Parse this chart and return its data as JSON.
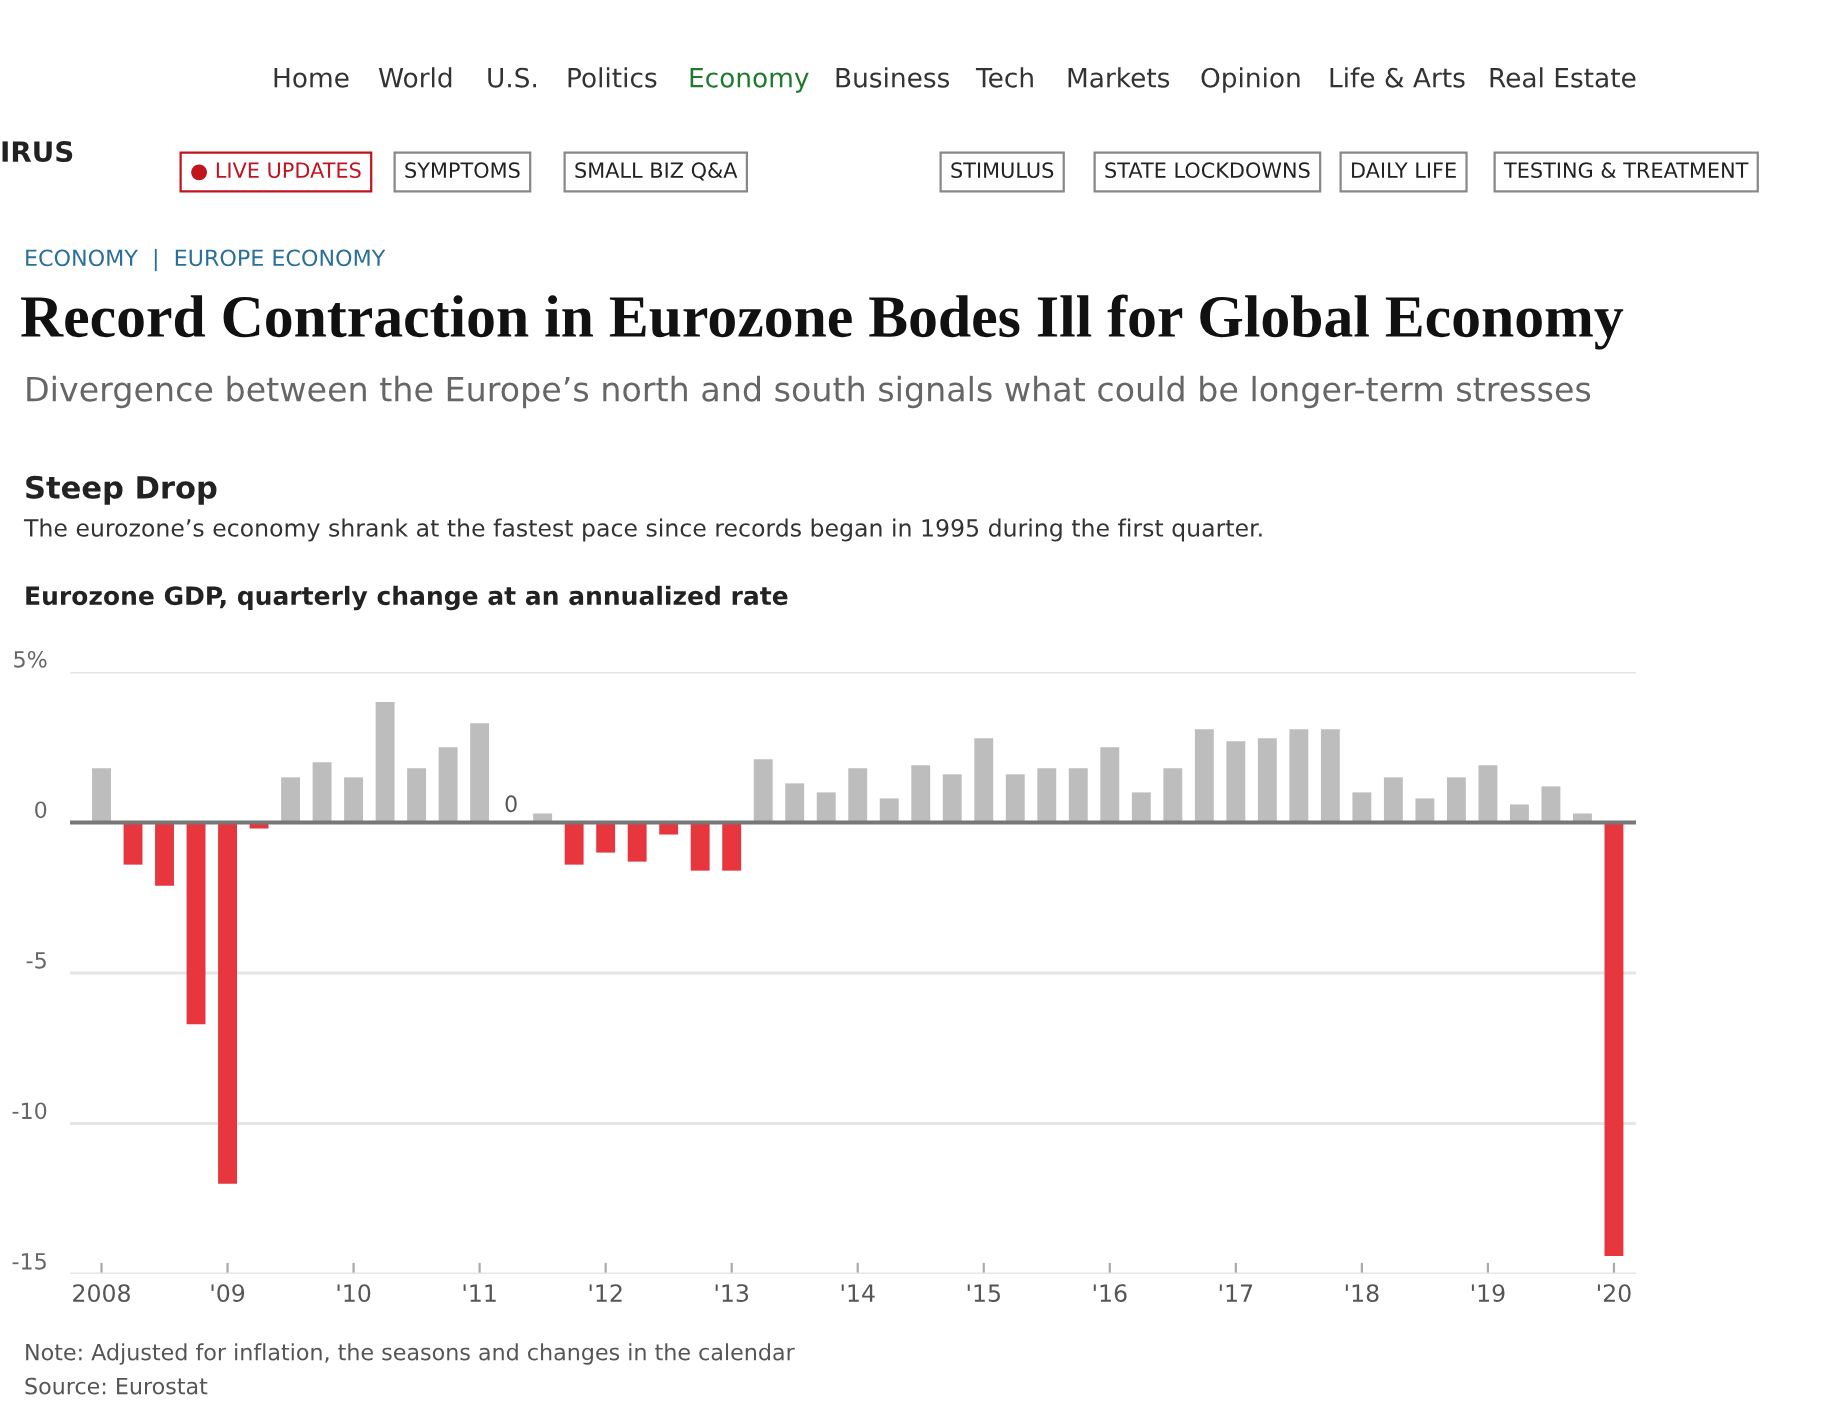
{
  "chart_data": {
    "type": "bar",
    "title": "Steep Drop",
    "subtitle": "The eurozone’s economy shrank at the fastest pace since records began in 1995 during the first quarter.",
    "ylabel": "Eurozone GDP, quarterly change at an annualized rate",
    "categories": [
      "2008",
      null,
      null,
      null,
      "'09",
      null,
      null,
      null,
      "'10",
      null,
      null,
      null,
      "'11",
      null,
      null,
      null,
      "'12",
      null,
      null,
      null,
      "'13",
      null,
      null,
      null,
      "'14",
      null,
      null,
      null,
      "'15",
      null,
      null,
      null,
      "'16",
      null,
      null,
      null,
      "'17",
      null,
      null,
      null,
      "'18",
      null,
      null,
      null,
      "'19",
      null,
      null,
      null,
      "'20"
    ],
    "values": [
      1.8,
      -1.4,
      -2.1,
      -6.7,
      -12.0,
      -0.2,
      1.5,
      2.0,
      1.5,
      4.0,
      1.8,
      2.5,
      3.3,
      0,
      0.3,
      -1.4,
      -1.0,
      -1.3,
      -0.4,
      -1.6,
      -1.6,
      2.1,
      1.3,
      1.0,
      1.8,
      0.8,
      1.9,
      1.6,
      2.8,
      1.6,
      1.8,
      1.8,
      2.5,
      1.0,
      1.8,
      3.1,
      2.7,
      2.8,
      3.1,
      3.1,
      1.0,
      1.5,
      0.8,
      1.5,
      1.9,
      0.6,
      1.2,
      0.3,
      -14.4
    ],
    "colors": [
      "#bdbdbd",
      "#e8363f",
      "#e8363f",
      "#e8363f",
      "#e8363f",
      "#e8363f",
      "#bdbdbd",
      "#bdbdbd",
      "#bdbdbd",
      "#bdbdbd",
      "#bdbdbd",
      "#bdbdbd",
      "#bdbdbd",
      "#bdbdbd",
      "#bdbdbd",
      "#e8363f",
      "#e8363f",
      "#e8363f",
      "#e8363f",
      "#e8363f",
      "#e8363f",
      "#bdbdbd",
      "#bdbdbd",
      "#bdbdbd",
      "#bdbdbd",
      "#bdbdbd",
      "#bdbdbd",
      "#bdbdbd",
      "#bdbdbd",
      "#bdbdbd",
      "#bdbdbd",
      "#bdbdbd",
      "#bdbdbd",
      "#bdbdbd",
      "#bdbdbd",
      "#bdbdbd",
      "#bdbdbd",
      "#bdbdbd",
      "#bdbdbd",
      "#bdbdbd",
      "#bdbdbd",
      "#bdbdbd",
      "#bdbdbd",
      "#bdbdbd",
      "#bdbdbd",
      "#bdbdbd",
      "#bdbdbd",
      "#bdbdbd",
      "#e8363f"
    ],
    "value_labels": [
      null,
      null,
      null,
      null,
      null,
      null,
      null,
      null,
      null,
      null,
      null,
      null,
      null,
      "0",
      null,
      null,
      null,
      null,
      null,
      null,
      null,
      null,
      null,
      null,
      null,
      null,
      null,
      null,
      null,
      null,
      null,
      null,
      null,
      null,
      null,
      null,
      null,
      null,
      null,
      null,
      null,
      null,
      null,
      null,
      null,
      null,
      null,
      null,
      null
    ],
    "ylim": [
      -15,
      5
    ],
    "yticks": [
      {
        "value": 5,
        "label": "5%"
      },
      0,
      -5,
      -10,
      -15
    ],
    "grid": "y",
    "legend": false,
    "annotations": [
      "Home",
      "World",
      "U.S.",
      "Politics",
      "Economy",
      "Business",
      "Tech",
      "Markets",
      "Opinion",
      "Life & Arts",
      "Real Estate",
      "IRUS",
      "● LIVE UPDATES",
      "SYMPTOMS",
      "SMALL BIZ Q&A",
      "STIMULUS",
      "STATE LOCKDOWNS",
      "DAILY LIFE",
      "TESTING & TREATMENT",
      "ECONOMY  |  EUROPE ECONOMY",
      "Record Contraction in Eurozone Bodes Ill for Global Economy",
      "Divergence between the Europe’s north and south signals what could be longer-term stresses",
      "Note: Adjusted for inflation, the seasons and changes in the calendar",
      "Source: Eurostat"
    ]
  }
}
